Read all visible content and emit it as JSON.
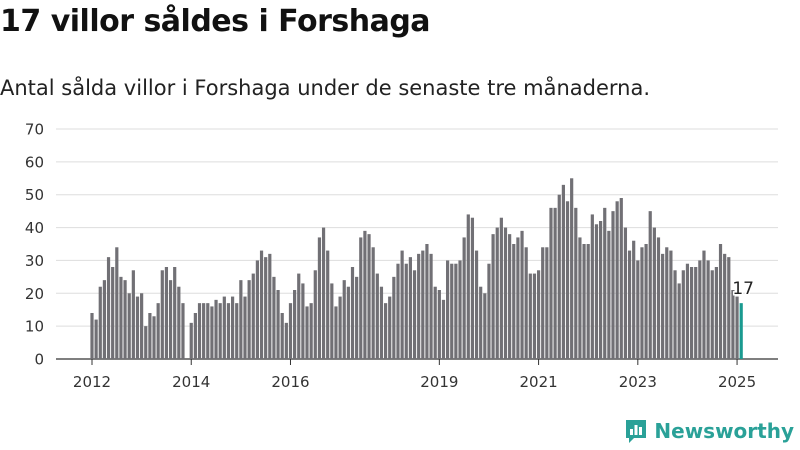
{
  "title": "17 villor såldes i Forshaga",
  "subtitle": "Antal sålda villor i Forshaga under de senaste tre månaderna.",
  "brand": "Newsworthy",
  "colors": {
    "bar": "#717075",
    "highlight": "#1a9a90",
    "grid": "#dddddd",
    "brand": "#2aa198"
  },
  "icons": {
    "logo": "bar-chart-icon"
  },
  "chart_data": {
    "type": "bar",
    "title": "17 villor såldes i Forshaga",
    "subtitle": "Antal sålda villor i Forshaga under de senaste tre månaderna.",
    "xlabel": "",
    "ylabel": "",
    "ylim": [
      0,
      70
    ],
    "yticks": [
      0,
      10,
      20,
      30,
      40,
      50,
      60,
      70
    ],
    "grid": true,
    "xticks": [
      {
        "label": "2012",
        "index": 0
      },
      {
        "label": "2014",
        "index": 24
      },
      {
        "label": "2016",
        "index": 48
      },
      {
        "label": "2019",
        "index": 84
      },
      {
        "label": "2021",
        "index": 108
      },
      {
        "label": "2023",
        "index": 132
      },
      {
        "label": "2025",
        "index": 156
      }
    ],
    "highlight_index": 157,
    "annotation": {
      "text": "17",
      "index": 157
    },
    "values": [
      14,
      12,
      22,
      24,
      31,
      28,
      34,
      25,
      24,
      20,
      27,
      19,
      20,
      10,
      14,
      13,
      17,
      27,
      28,
      24,
      28,
      22,
      17,
      0,
      11,
      14,
      17,
      17,
      17,
      16,
      18,
      17,
      19,
      17,
      19,
      17,
      24,
      19,
      24,
      26,
      30,
      33,
      31,
      32,
      25,
      21,
      14,
      11,
      17,
      21,
      26,
      23,
      16,
      17,
      27,
      37,
      40,
      33,
      23,
      16,
      19,
      24,
      22,
      28,
      25,
      37,
      39,
      38,
      34,
      26,
      22,
      17,
      19,
      25,
      29,
      33,
      29,
      31,
      27,
      32,
      33,
      35,
      32,
      22,
      21,
      18,
      30,
      29,
      29,
      30,
      37,
      44,
      43,
      33,
      22,
      20,
      29,
      38,
      40,
      43,
      40,
      38,
      35,
      37,
      39,
      34,
      26,
      26,
      27,
      34,
      34,
      46,
      46,
      50,
      53,
      48,
      55,
      46,
      37,
      35,
      35,
      44,
      41,
      42,
      46,
      39,
      45,
      48,
      49,
      40,
      33,
      36,
      30,
      34,
      35,
      45,
      40,
      37,
      32,
      34,
      33,
      27,
      23,
      27,
      29,
      28,
      28,
      30,
      33,
      30,
      27,
      28,
      35,
      32,
      31,
      21,
      19,
      17
    ]
  }
}
